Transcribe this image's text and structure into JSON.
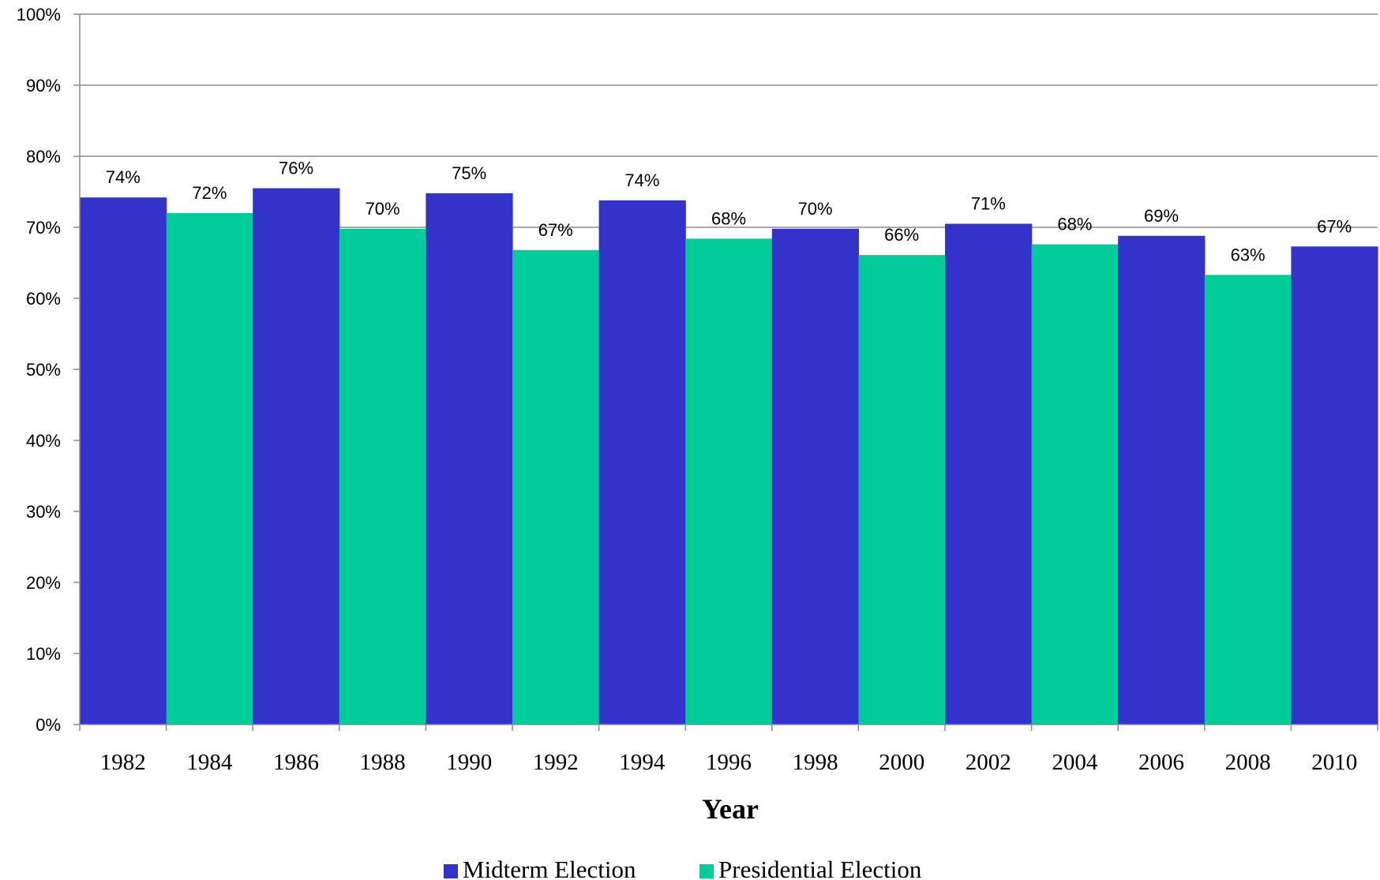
{
  "chart_data": {
    "type": "bar",
    "categories": [
      "1982",
      "1984",
      "1986",
      "1988",
      "1990",
      "1992",
      "1994",
      "1996",
      "1998",
      "2000",
      "2002",
      "2004",
      "2006",
      "2008",
      "2010"
    ],
    "values": [
      74.2,
      72.0,
      75.5,
      69.8,
      74.8,
      66.8,
      73.8,
      68.4,
      69.8,
      66.1,
      70.5,
      67.6,
      68.8,
      63.3,
      67.3
    ],
    "data_labels": [
      "74%",
      "72%",
      "76%",
      "70%",
      "75%",
      "67%",
      "74%",
      "68%",
      "70%",
      "66%",
      "71%",
      "68%",
      "69%",
      "63%",
      "67%"
    ],
    "bar_series": [
      "Midterm Election",
      "Presidential Election",
      "Midterm Election",
      "Presidential Election",
      "Midterm Election",
      "Presidential Election",
      "Midterm Election",
      "Presidential Election",
      "Midterm Election",
      "Presidential Election",
      "Midterm Election",
      "Presidential Election",
      "Midterm Election",
      "Presidential Election",
      "Midterm Election"
    ],
    "series": [
      {
        "name": "Midterm Election",
        "color": "#3333cc"
      },
      {
        "name": "Presidential Election",
        "color": "#00cc99"
      }
    ],
    "xlabel": "Year",
    "ylabel": "",
    "ylim": [
      0,
      100
    ],
    "yticks": [
      "0%",
      "10%",
      "20%",
      "30%",
      "40%",
      "50%",
      "60%",
      "70%",
      "80%",
      "90%",
      "100%"
    ],
    "grid": true,
    "legend_position": "bottom"
  }
}
